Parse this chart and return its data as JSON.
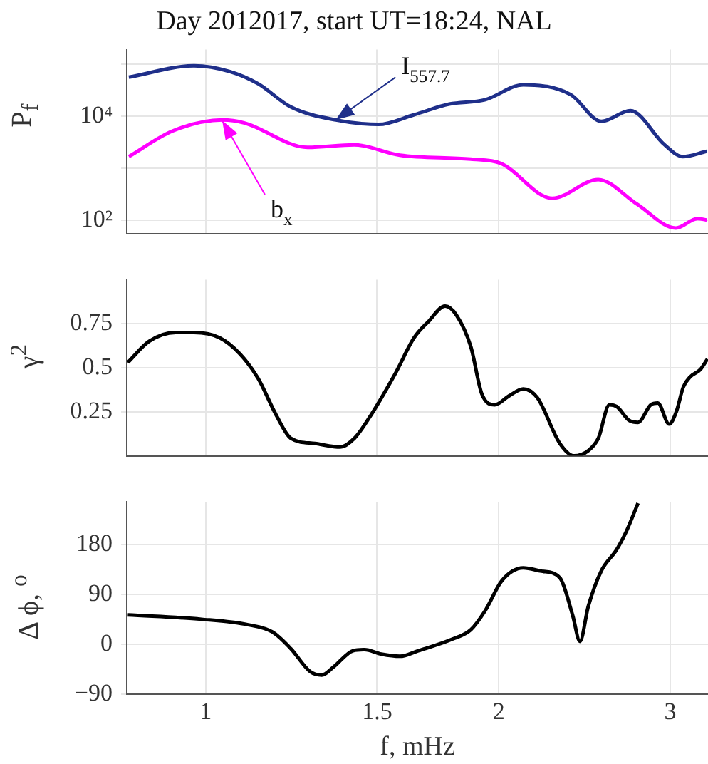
{
  "chart_data": [
    {
      "type": "line",
      "title": "Day 2012017, start UT=18:24, NAL",
      "ylabel": "P$_{f}$",
      "log": "xy",
      "grid": true,
      "tick_labels": "y",
      "marker": "none",
      "line_style": "solid",
      "xlim": [
        0.83,
        3.28
      ],
      "xticks": [
        1,
        1.5,
        2,
        3
      ],
      "ylim": [
        55,
        190000
      ],
      "yticks": [
        {
          "value": 100,
          "label": "10²"
        },
        {
          "value": 1000,
          "label": null
        },
        {
          "value": 10000,
          "label": "10⁴"
        },
        {
          "value": 100000,
          "label": null
        }
      ],
      "series": [
        {
          "color": "#1f2f8a",
          "x": [
            0.834,
            0.973,
            1.059,
            1.132,
            1.223,
            1.361,
            1.505,
            1.637,
            1.779,
            1.935,
            2.12,
            2.37,
            2.55,
            2.73,
            2.96,
            3.09,
            3.27
          ],
          "values": [
            56000,
            93000,
            72000,
            42000,
            15000,
            8400,
            6900,
            10600,
            17000,
            20500,
            40000,
            26000,
            7900,
            12700,
            2800,
            1660,
            2100
          ]
        },
        {
          "color": "#ff00ff",
          "x": [
            0.834,
            0.926,
            1.041,
            1.095,
            1.273,
            1.421,
            1.583,
            1.872,
            2.01,
            2.27,
            2.53,
            2.77,
            3.04,
            3.2,
            3.27
          ],
          "values": [
            1660,
            5200,
            8400,
            7400,
            2500,
            2800,
            1770,
            1480,
            1230,
            262,
            600,
            205,
            70,
            106,
            100
          ]
        }
      ],
      "annotations": [
        {
          "text": "I$_{557.7}$",
          "x": 1.36,
          "y": 8400
        },
        {
          "text": "b$_{x}$",
          "x": 1.04,
          "y": 8200
        }
      ]
    },
    {
      "type": "line",
      "ylabel": "γ$^{2}$",
      "log": "x",
      "grid": true,
      "tick_labels": "y",
      "marker": "none",
      "line_style": "solid",
      "xlim": [
        0.83,
        3.28
      ],
      "xticks": [
        1,
        1.5,
        2,
        3
      ],
      "ylim": [
        0,
        1
      ],
      "yticks": [
        0.25,
        0.5,
        0.75
      ],
      "x": [
        0.832,
        0.875,
        0.932,
        0.973,
        1.034,
        1.084,
        1.132,
        1.182,
        1.223,
        1.295,
        1.375,
        1.422,
        1.47,
        1.567,
        1.637,
        1.692,
        1.762,
        1.809,
        1.872,
        1.922,
        1.982,
        2.049,
        2.119,
        2.191,
        2.311,
        2.39,
        2.472,
        2.531,
        2.598,
        2.643,
        2.724,
        2.78,
        2.865,
        2.913,
        2.992,
        3.043,
        3.094,
        3.147,
        3.221,
        3.276
      ],
      "series": [
        {
          "color": "#000000",
          "values": [
            0.53,
            0.65,
            0.7,
            0.7,
            0.67,
            0.58,
            0.44,
            0.23,
            0.1,
            0.07,
            0.05,
            0.1,
            0.21,
            0.47,
            0.67,
            0.76,
            0.85,
            0.8,
            0.62,
            0.35,
            0.29,
            0.34,
            0.38,
            0.33,
            0.07,
            0,
            0.03,
            0.1,
            0.29,
            0.28,
            0.2,
            0.19,
            0.29,
            0.3,
            0.18,
            0.25,
            0.39,
            0.45,
            0.49,
            0.55
          ]
        }
      ]
    },
    {
      "type": "line",
      "xlabel": "f, mHz",
      "ylabel": "Δ ϕ, $^{o}$",
      "log": "x",
      "grid": true,
      "marker": "none",
      "line_style": "solid",
      "xlim": [
        0.83,
        3.28
      ],
      "xticks": [
        1,
        1.5,
        2,
        3
      ],
      "ylim": [
        -90,
        257
      ],
      "yticks": [
        {
          "value": -90,
          "label": "−90"
        },
        0,
        90,
        180
      ],
      "x": [
        0.832,
        0.99,
        1.106,
        1.171,
        1.223,
        1.281,
        1.316,
        1.352,
        1.417,
        1.456,
        1.515,
        1.583,
        1.653,
        1.792,
        1.872,
        1.936,
        2.015,
        2.119,
        2.213,
        2.311,
        2.382,
        2.423,
        2.472,
        2.548,
        2.643,
        2.706,
        2.78
      ],
      "series": [
        {
          "color": "#000000",
          "values": [
            53,
            45,
            35,
            22,
            -8,
            -50,
            -56,
            -42,
            -12,
            -10,
            -18,
            -22,
            -12,
            9,
            26,
            60,
            115,
            138,
            132,
            120,
            52,
            5,
            69,
            132,
            171,
            205,
            255
          ]
        }
      ]
    }
  ]
}
